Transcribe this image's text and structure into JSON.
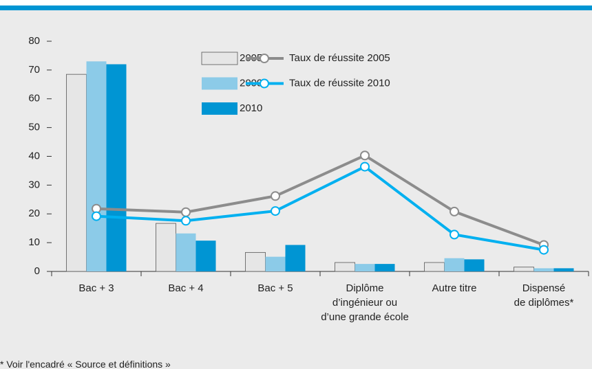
{
  "chart_data": {
    "type": "bar",
    "categories": [
      "Bac + 3",
      "Bac + 4",
      "Bac + 5",
      "Diplôme\nd’ingénieur ou\nd’une grande école",
      "Autre titre",
      "Dispensé\nde diplômes*"
    ],
    "series": [
      {
        "name": "2005",
        "type": "bar",
        "color": "#e6e6e6",
        "values": [
          68.5,
          16.7,
          6.6,
          3.1,
          3.1,
          1.5
        ]
      },
      {
        "name": "2009",
        "type": "bar",
        "color": "#8ccbe8",
        "values": [
          73,
          13.2,
          5.1,
          2.6,
          4.6,
          1.1
        ]
      },
      {
        "name": "2010",
        "type": "bar",
        "color": "#0095d3",
        "values": [
          72,
          10.7,
          9.2,
          2.6,
          4.2,
          1.1
        ]
      },
      {
        "name": "Taux de réussite 2005",
        "type": "line",
        "color": "#8c8c8c",
        "values": [
          21.8,
          20.6,
          26.2,
          40.3,
          20.8,
          9.2
        ]
      },
      {
        "name": "Taux de réussite 2010",
        "type": "line",
        "color": "#00b0f0",
        "values": [
          19.2,
          17.6,
          21,
          36.4,
          12.8,
          7.5
        ]
      }
    ],
    "ylim": [
      0,
      80
    ],
    "yticks": [
      0,
      10,
      20,
      30,
      40,
      50,
      60,
      70,
      80
    ],
    "grid": false,
    "footnote": "* Voir l'encadré « Source et définitions »"
  }
}
